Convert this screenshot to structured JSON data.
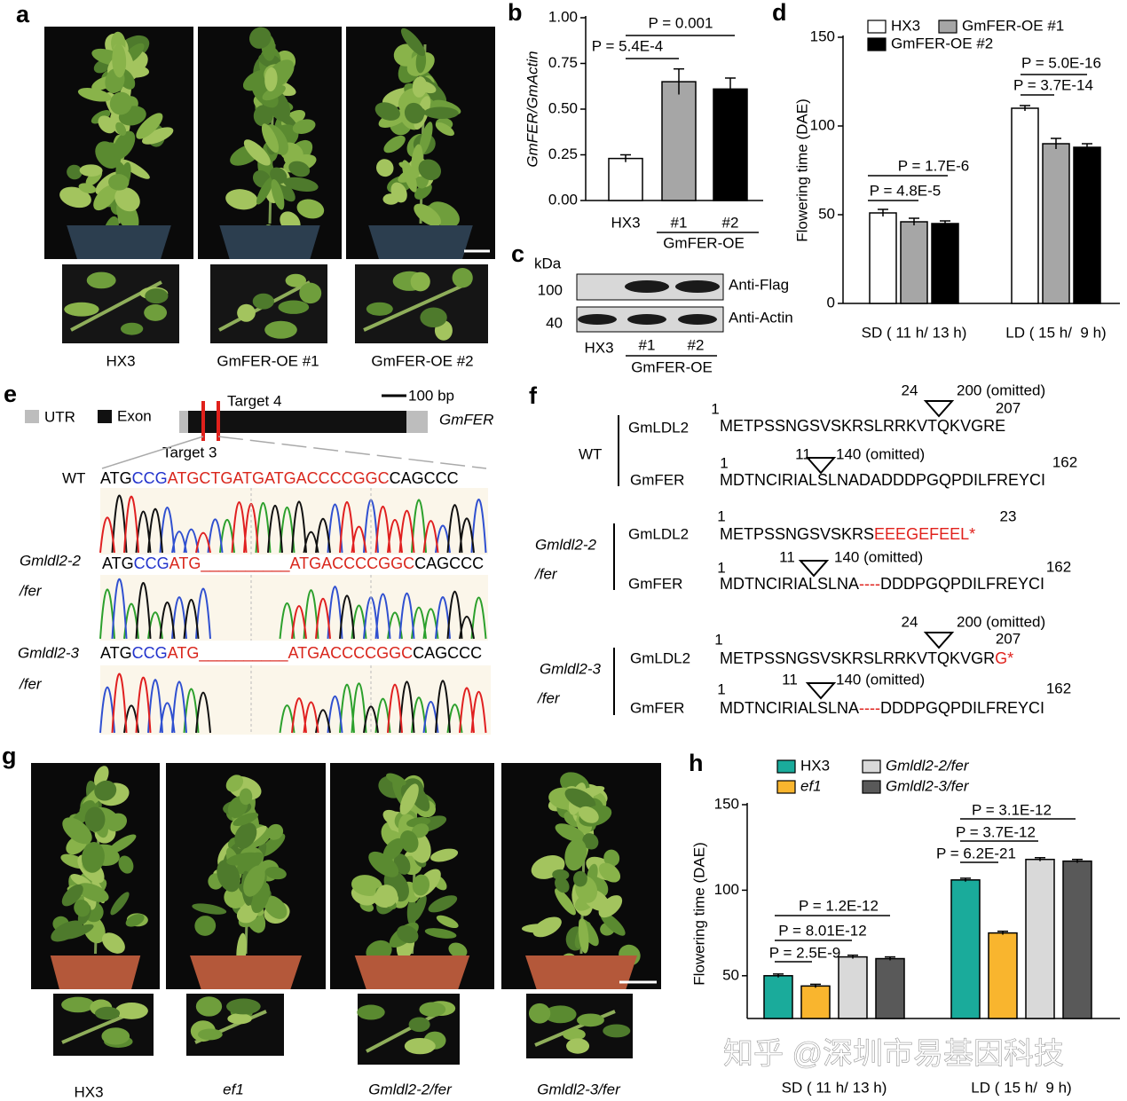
{
  "panel_labels": [
    "a",
    "b",
    "c",
    "d",
    "e",
    "f",
    "g",
    "h"
  ],
  "panel_a": {
    "captions": [
      "HX3",
      "GmFER-OE #1",
      "GmFER-OE #2"
    ]
  },
  "panel_c": {
    "unit": "kDa",
    "markers": [
      100,
      40
    ],
    "antibodies": [
      "Anti-Flag",
      "Anti-Actin"
    ],
    "lanes": [
      "HX3",
      "#1",
      "#2"
    ],
    "group": "GmFER-OE"
  },
  "panel_e": {
    "legend": [
      "UTR",
      "Exon"
    ],
    "targets": [
      "Target 4",
      "Target 3"
    ],
    "scale": "100 bp",
    "gene": "GmFER",
    "rows": [
      {
        "label": [
          "WT"
        ],
        "sequence": [
          {
            "text": "ATG",
            "color": "#000000"
          },
          {
            "text": "CCG",
            "color": "#2233cc"
          },
          {
            "text": "ATGCTGATGATGACCCCGGC",
            "color": "#d9261c"
          },
          {
            "text": "CAGCCC",
            "color": "#000000"
          }
        ]
      },
      {
        "label": [
          "Gmldl2-2",
          "/fer"
        ],
        "sequence": [
          {
            "text": "ATG",
            "color": "#000000"
          },
          {
            "text": "CCG",
            "color": "#2233cc"
          },
          {
            "text": "ATG",
            "color": "#d9261c"
          },
          {
            "text": "__________",
            "color": "#d9261c"
          },
          {
            "text": "ATGACCCCGGC",
            "color": "#d9261c"
          },
          {
            "text": "CAGCCC",
            "color": "#000000"
          }
        ]
      },
      {
        "label": [
          "Gmldl2-3",
          "/fer"
        ],
        "sequence": [
          {
            "text": "ATG",
            "color": "#000000"
          },
          {
            "text": "CCG",
            "color": "#2233cc"
          },
          {
            "text": "ATG",
            "color": "#d9261c"
          },
          {
            "text": "__________",
            "color": "#d9261c"
          },
          {
            "text": "ATGACCCCGGC",
            "color": "#d9261c"
          },
          {
            "text": "CAGCCC",
            "color": "#000000"
          }
        ]
      }
    ]
  },
  "panel_f": {
    "blocks": [
      {
        "label": [
          "WT"
        ],
        "proteins": [
          {
            "name": "GmLDL2",
            "markers": [
              1,
              24,
              207
            ],
            "omitted": "200 (omitted)",
            "sequence": [
              {
                "text": "METPSSNGSVSKRSLRRKVTQKVGRE",
                "color": "#000000"
              }
            ]
          },
          {
            "name": "GmFER",
            "markers": [
              1,
              11,
              162
            ],
            "omitted": "140 (omitted)",
            "sequence": [
              {
                "text": "MDTNCIRIALSLNADADDDPGQPDILFREYCI",
                "color": "#000000"
              }
            ]
          }
        ]
      },
      {
        "label": [
          "Gmldl2-2",
          "/fer"
        ],
        "proteins": [
          {
            "name": "GmLDL2",
            "markers": [
              1,
              23
            ],
            "sequence": [
              {
                "text": "METPSSNGSVSKRS",
                "color": "#000000"
              },
              {
                "text": "EEEGEFEEL*",
                "color": "#e0201b"
              }
            ]
          },
          {
            "name": "GmFER",
            "markers": [
              1,
              11,
              162
            ],
            "omitted": "140 (omitted)",
            "sequence": [
              {
                "text": "MDTNCIRIALSLNA",
                "color": "#000000"
              },
              {
                "text": "----",
                "color": "#e0201b"
              },
              {
                "text": "DDDPGQPDILFREYCI",
                "color": "#000000"
              }
            ]
          }
        ]
      },
      {
        "label": [
          "Gmldl2-3",
          "/fer"
        ],
        "proteins": [
          {
            "name": "GmLDL2",
            "markers": [
              1,
              24,
              207
            ],
            "omitted": "200 (omitted)",
            "sequence": [
              {
                "text": "METPSSNGSVSKRSLRRKVTQKVGR",
                "color": "#000000"
              },
              {
                "text": "G*",
                "color": "#e0201b"
              }
            ]
          },
          {
            "name": "GmFER",
            "markers": [
              1,
              11,
              162
            ],
            "omitted": "140 (omitted)",
            "sequence": [
              {
                "text": "MDTNCIRIALSLNA",
                "color": "#000000"
              },
              {
                "text": "----",
                "color": "#e0201b"
              },
              {
                "text": "DDDPGQPDILFREYCI",
                "color": "#000000"
              }
            ]
          }
        ]
      }
    ]
  },
  "panel_g": {
    "captions": [
      "HX3",
      "ef1",
      "Gmldl2-2/fer",
      "Gmldl2-3/fer"
    ]
  },
  "watermark": "知乎 @深圳市易基因科技",
  "chart_data": [
    {
      "type": "bar",
      "ylabel": "GmFER/GmActin",
      "categories": [
        "HX3",
        "#1",
        "#2"
      ],
      "group_label": "GmFER-OE",
      "values": [
        0.23,
        0.65,
        0.61
      ],
      "errors": [
        0.02,
        0.07,
        0.06
      ],
      "colors": [
        "#ffffff",
        "#a6a6a6",
        "#000000"
      ],
      "ylim": [
        0,
        1
      ],
      "yticks": [
        {
          "value": 0,
          "label": "0.00"
        },
        0.25,
        {
          "value": 0.5,
          "label": "0.50"
        },
        0.75,
        {
          "value": 1,
          "label": "1.00"
        }
      ],
      "annotations": [
        "P = 5.4E-4",
        "P = 0.001"
      ]
    },
    {
      "type": "grouped_bar",
      "ylabel": "Flowering time (DAE)",
      "categories": [
        "SD ( 11 h/ 13 h)",
        "LD ( 15 h/  9 h)"
      ],
      "series": [
        {
          "name": "HX3",
          "color": "#ffffff",
          "values": [
            51,
            110
          ],
          "errors": [
            2,
            1.5
          ]
        },
        {
          "name": "GmFER-OE #1",
          "color": "#a6a6a6",
          "values": [
            46,
            90
          ],
          "errors": [
            2,
            3
          ]
        },
        {
          "name": "GmFER-OE #2",
          "color": "#000000",
          "values": [
            45,
            88
          ],
          "errors": [
            1.5,
            2
          ]
        }
      ],
      "ylim": [
        0,
        150
      ],
      "yticks": [
        0,
        50,
        100,
        150
      ],
      "annotations": [
        "P = 4.8E-5",
        "P = 1.7E-6",
        "P = 3.7E-14",
        "P = 5.0E-16"
      ]
    },
    {
      "type": "grouped_bar",
      "ylabel": "Flowering time (DAE)",
      "categories": [
        "SD ( 11 h/ 13 h)",
        "LD ( 15 h/  9 h)"
      ],
      "series": [
        {
          "name": "HX3",
          "color": "#1aab9b",
          "values": [
            50,
            106
          ],
          "errors": [
            1,
            1
          ]
        },
        {
          "name": "ef1",
          "color": "#f9b52e",
          "values": [
            44,
            75
          ],
          "errors": [
            1,
            1
          ]
        },
        {
          "name": "Gmldl2-2/fer",
          "color": "#d9d9d9",
          "values": [
            61,
            118
          ],
          "errors": [
            1,
            1
          ]
        },
        {
          "name": "Gmldl2-3/fer",
          "color": "#595959",
          "values": [
            60,
            117
          ],
          "errors": [
            1,
            1
          ]
        }
      ],
      "ylim": [
        25,
        150
      ],
      "yticks": [
        50,
        100,
        150
      ],
      "annotations": [
        "P = 2.5E-9",
        "P = 8.01E-12",
        "P = 1.2E-12",
        "P = 6.2E-21",
        "P = 3.7E-12",
        "P = 3.1E-12"
      ]
    }
  ]
}
